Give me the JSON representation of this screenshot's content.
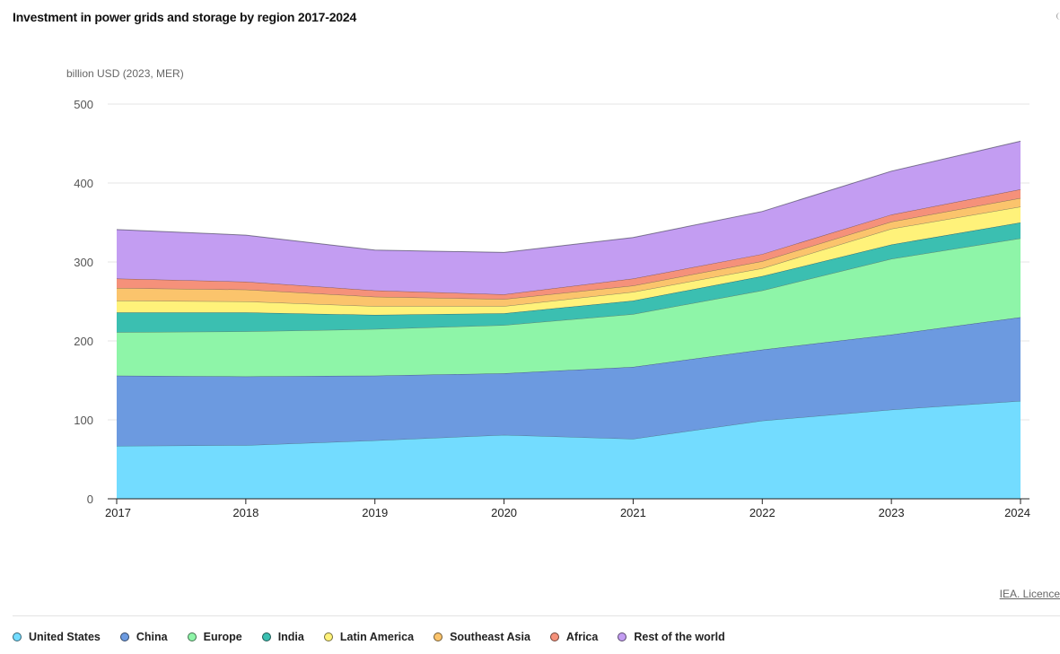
{
  "page": {
    "title": "Investment in power grids and storage by region 2017-2024",
    "licence_label": "IEA. Licence"
  },
  "chart_data": {
    "type": "area",
    "stacked": true,
    "title": "Investment in power grids and storage by region 2017-2024",
    "ylabel": "billion USD (2023, MER)",
    "xlabel": "",
    "x": [
      "2017",
      "2018",
      "2019",
      "2020",
      "2021",
      "2022",
      "2023",
      "2024"
    ],
    "ylim": [
      0,
      500
    ],
    "yticks": [
      0,
      100,
      200,
      300,
      400,
      500
    ],
    "grid": true,
    "legend_position": "bottom",
    "series": [
      {
        "name": "United States",
        "color": "#73dcff",
        "values": [
          67,
          68,
          74,
          81,
          76,
          99,
          113,
          124
        ]
      },
      {
        "name": "China",
        "color": "#6c9ae0",
        "values": [
          89,
          87,
          82,
          78,
          91,
          90,
          95,
          106
        ]
      },
      {
        "name": "Europe",
        "color": "#8ef5a8",
        "values": [
          55,
          57,
          59,
          61,
          67,
          75,
          96,
          100
        ]
      },
      {
        "name": "India",
        "color": "#3bbfb1",
        "values": [
          25,
          24,
          18,
          15,
          17,
          18,
          18,
          20
        ]
      },
      {
        "name": "Latin America",
        "color": "#fff27a",
        "values": [
          15,
          14,
          11,
          9,
          11,
          10,
          20,
          20
        ]
      },
      {
        "name": "Southeast Asia",
        "color": "#fbc46c",
        "values": [
          16,
          15,
          12,
          9,
          8,
          9,
          9,
          11
        ]
      },
      {
        "name": "Africa",
        "color": "#f5917a",
        "values": [
          12,
          10,
          8,
          6,
          9,
          9,
          9,
          11
        ]
      },
      {
        "name": "Rest of the world",
        "color": "#c39df2",
        "values": [
          62,
          59,
          51,
          53,
          52,
          54,
          55,
          61
        ]
      }
    ]
  }
}
